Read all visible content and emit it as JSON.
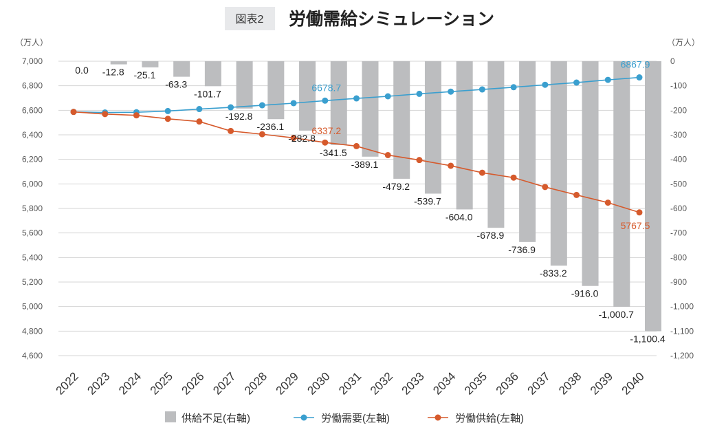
{
  "figure_label": "図表2",
  "title": "労働需給シミュレーション",
  "chart_data": {
    "type": "bar+line",
    "title": "労働需給シミュレーション",
    "left_axis": {
      "unit": "（万人）",
      "range": [
        4600,
        7000
      ],
      "ticks": [
        7000,
        6800,
        6600,
        6400,
        6200,
        6000,
        5800,
        5600,
        5400,
        5200,
        5000,
        4800,
        4600
      ]
    },
    "right_axis": {
      "unit": "（万人）",
      "range": [
        -1200,
        0
      ],
      "ticks": [
        0,
        -100,
        -200,
        -300,
        -400,
        -500,
        -600,
        -700,
        -800,
        -900,
        -1000,
        -1100,
        -1200
      ]
    },
    "grid": true,
    "legend_placement": "bottom",
    "categories": [
      "2022",
      "2023",
      "2024",
      "2025",
      "2026",
      "2027",
      "2028",
      "2029",
      "2030",
      "2031",
      "2032",
      "2033",
      "2034",
      "2035",
      "2036",
      "2037",
      "2038",
      "2039",
      "2040"
    ],
    "series": [
      {
        "name": "供給不足(右軸)",
        "type": "bar",
        "axis": "right",
        "color": "#bcbdbf",
        "values": [
          0.0,
          -12.8,
          -25.1,
          -63.3,
          -101.7,
          -192.8,
          -236.1,
          -282.8,
          -341.5,
          -389.1,
          -479.2,
          -539.7,
          -604.0,
          -678.9,
          -736.9,
          -833.2,
          -916.0,
          -1000.7,
          -1100.4
        ],
        "labels": [
          "0.0",
          "-12.8",
          "-25.1",
          "-63.3",
          "-101.7",
          "-192.8",
          "-236.1",
          "-282.8",
          "-341.5",
          "-389.1",
          "-479.2",
          "-539.7",
          "-604.0",
          "-678.9",
          "-736.9",
          "-833.2",
          "-916.0",
          "-1,000.7",
          "-1,100.4"
        ]
      },
      {
        "name": "労働需要(左軸)",
        "type": "line",
        "axis": "left",
        "color": "#3a9fcf",
        "values": [
          6587,
          6582,
          6584,
          6594,
          6610,
          6624,
          6641,
          6658,
          6678.7,
          6697,
          6714,
          6734,
          6752,
          6770,
          6788,
          6808,
          6826,
          6848,
          6867.9
        ],
        "annotations": {
          "2030": "6678.7",
          "2040": "6867.9"
        }
      },
      {
        "name": "労働供給(左軸)",
        "type": "line",
        "axis": "left",
        "color": "#d65a2c",
        "values": [
          6587,
          6569.2,
          6558.9,
          6530.7,
          6508.3,
          6431.2,
          6404.9,
          6375.2,
          6337.2,
          6307.9,
          6234.8,
          6194.3,
          6148,
          6091.1,
          6051.1,
          5974.8,
          5910,
          5847.3,
          5767.5
        ],
        "annotations": {
          "2030": "6337.2",
          "2040": "5767.5"
        }
      }
    ]
  }
}
